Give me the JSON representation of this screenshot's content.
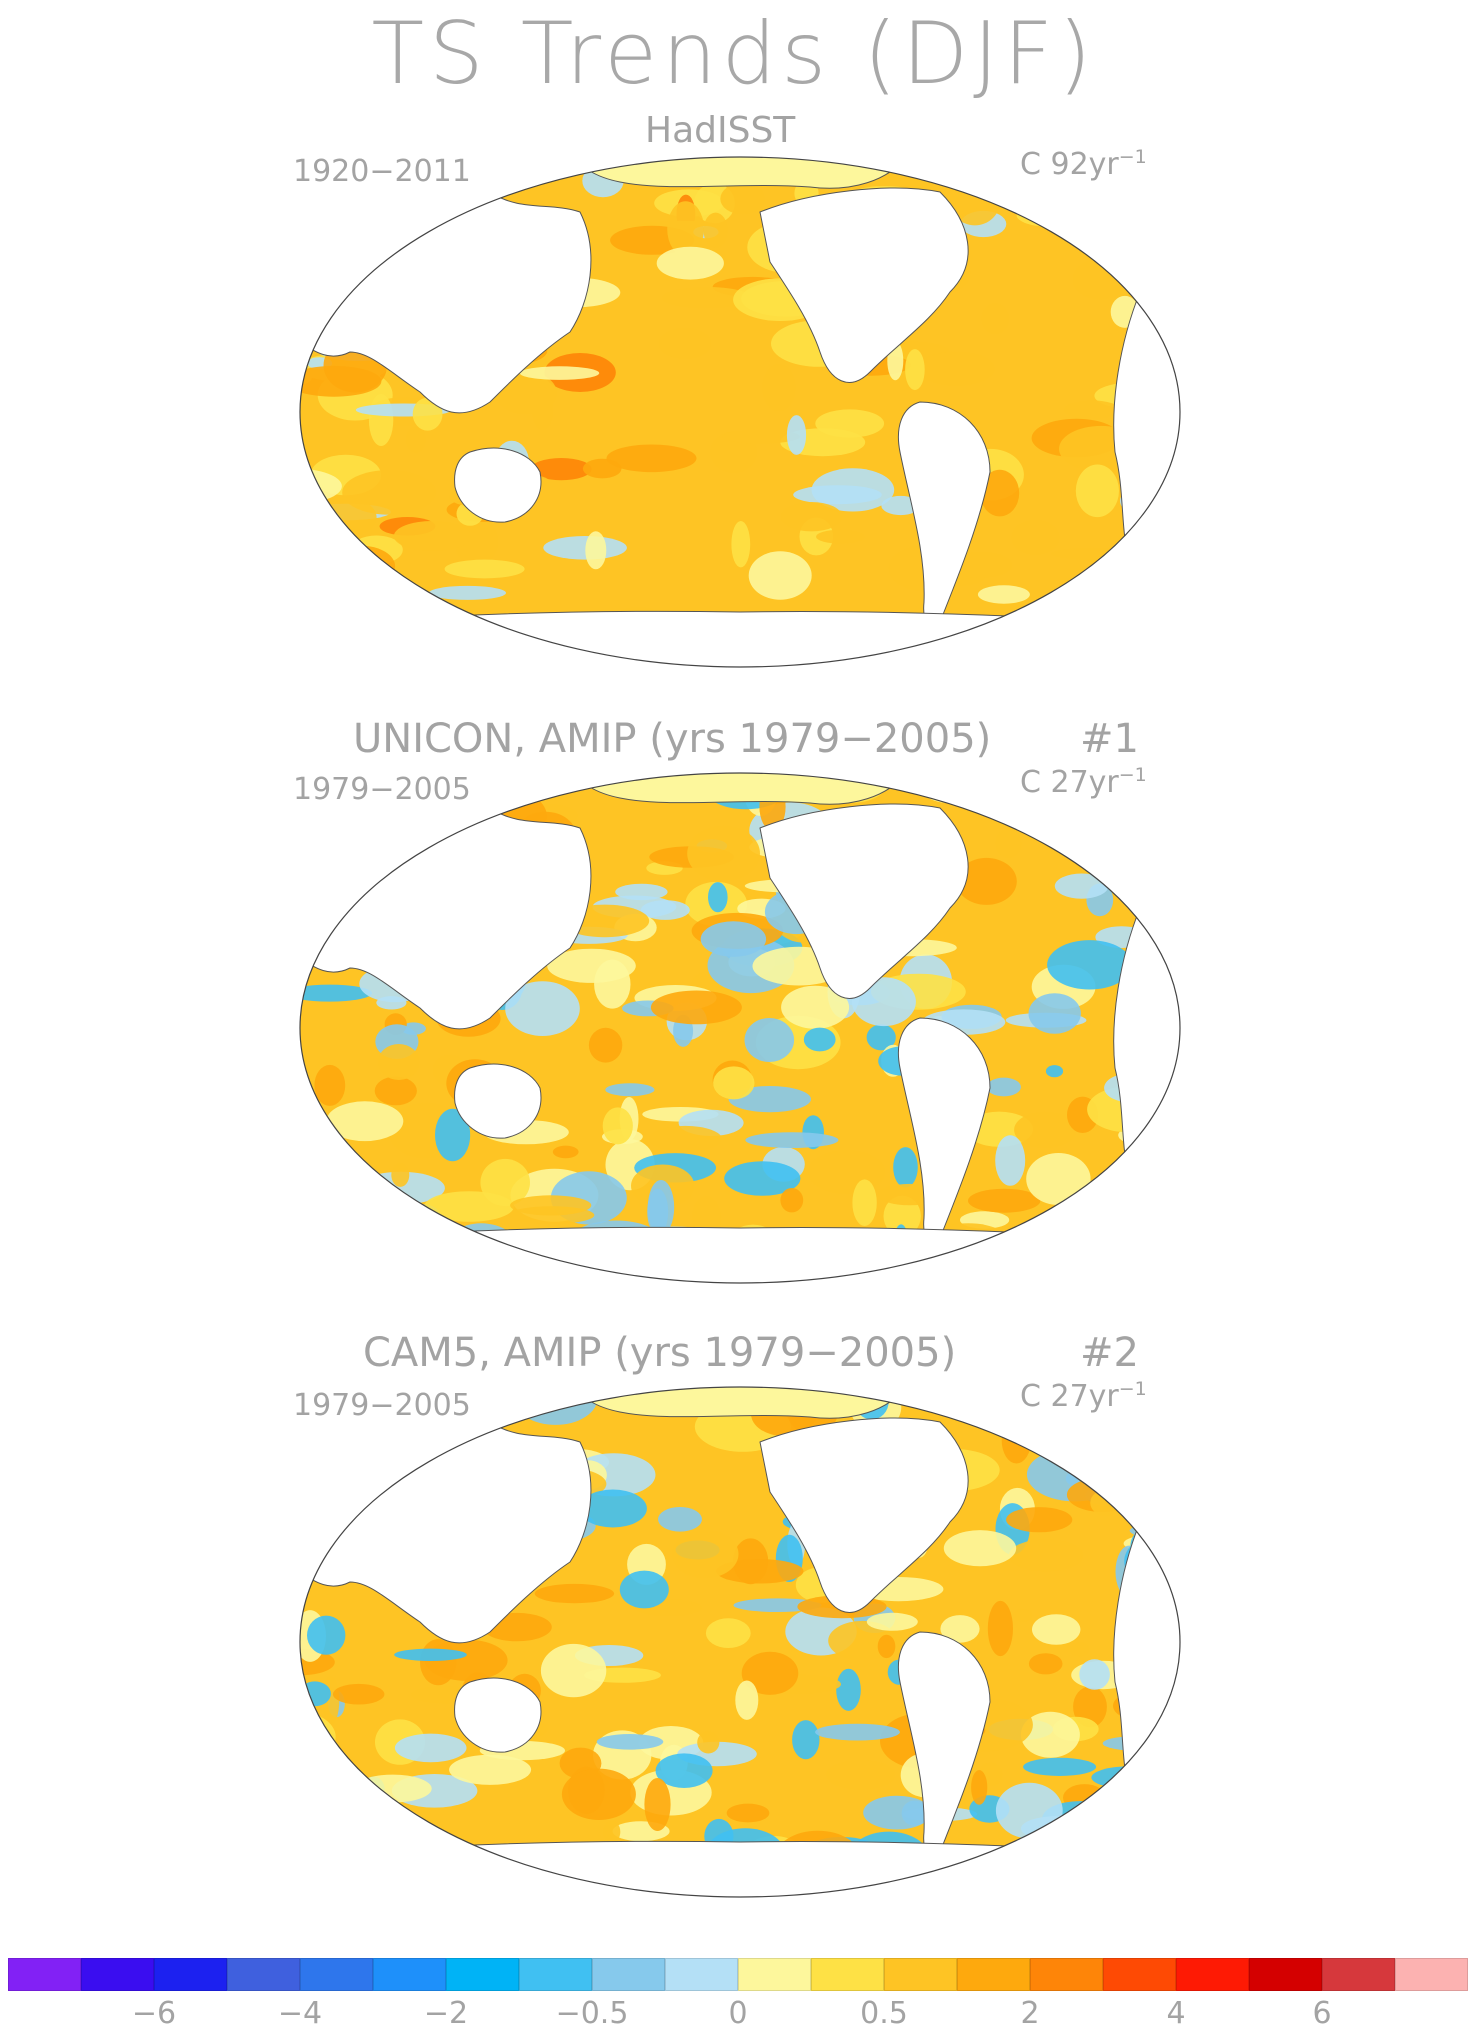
{
  "title": "TS Trends (DJF)",
  "colors": [
    "#8221f5",
    "#3a0df0",
    "#1c21f0",
    "#3f60de",
    "#2e76ec",
    "#1e90fa",
    "#00b3f6",
    "#40c0f2",
    "#86c9ec",
    "#b4e0f6",
    "#fdf79c",
    "#fee145",
    "#fec424",
    "#fea90d",
    "#fe8508",
    "#fe4a04",
    "#fe1a04",
    "#d40000",
    "#d6383c",
    "#fcb2b1"
  ],
  "colorbar_labels": [
    "−6",
    "−4",
    "−2",
    "−0.5",
    "0",
    "0.5",
    "2",
    "4",
    "6"
  ],
  "panels": [
    {
      "title": "HadISST",
      "number": "",
      "period": "1920−2011",
      "units_prefix": "C 92yr",
      "units_exp": "−1"
    },
    {
      "title": "UNICON, AMIP (yrs 1979−2005)",
      "number": "#1",
      "period": "1979−2005",
      "units_prefix": "C 27yr",
      "units_exp": "−1"
    },
    {
      "title": "CAM5, AMIP (yrs 1979−2005)",
      "number": "#2",
      "period": "1979−2005",
      "units_prefix": "C 27yr",
      "units_exp": "−1"
    }
  ]
}
